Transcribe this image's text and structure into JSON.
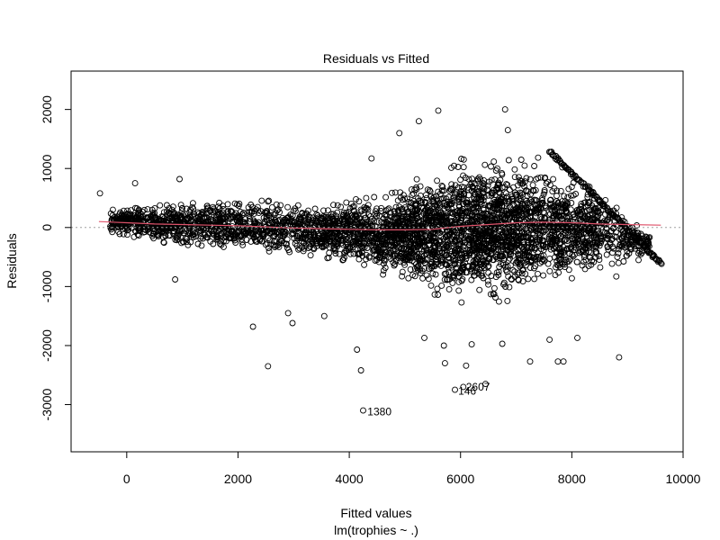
{
  "chart_data": {
    "type": "scatter",
    "title": "Residuals vs Fitted",
    "xlabel": "Fitted values",
    "ylabel": "Residuals",
    "subtitle": "lm(trophies ~ .)",
    "xlim": [
      -1000,
      10000
    ],
    "ylim": [
      -3800,
      2650
    ],
    "x_ticks": [
      0,
      2000,
      4000,
      6000,
      8000,
      10000
    ],
    "x_tick_labels": [
      "0",
      "2000",
      "4000",
      "6000",
      "8000",
      "10000"
    ],
    "y_ticks": [
      -3000,
      -2000,
      -1000,
      0,
      1000,
      2000
    ],
    "y_tick_labels": [
      "-3000",
      "-2000",
      "-1000",
      "0",
      "1000",
      "2000"
    ],
    "reference_line": {
      "y": 0,
      "style": "dotted",
      "color": "#a0a0a0"
    },
    "point_style": {
      "shape": "open-circle",
      "color": "#000000"
    },
    "smooth_color": "#df536b",
    "smooth": {
      "x": [
        -500,
        0,
        500,
        1000,
        1500,
        2000,
        2500,
        3000,
        3500,
        4000,
        4500,
        5000,
        5500,
        6000,
        6500,
        7000,
        7500,
        8000,
        8500,
        9000,
        9600
      ],
      "y": [
        100,
        80,
        60,
        50,
        40,
        30,
        10,
        -10,
        -20,
        -30,
        -40,
        -40,
        -30,
        20,
        50,
        80,
        90,
        80,
        60,
        50,
        40
      ]
    },
    "annotations": [
      {
        "label": "1380",
        "x": 4230,
        "y": -3120
      },
      {
        "label": "146",
        "x": 5860,
        "y": -2770
      },
      {
        "label": "2607",
        "x": 6000,
        "y": -2700
      }
    ],
    "highlight_points": [
      {
        "x": -480,
        "y": 580
      },
      {
        "x": -250,
        "y": 300
      },
      {
        "x": 150,
        "y": 750
      },
      {
        "x": 950,
        "y": 820
      },
      {
        "x": 870,
        "y": -880
      },
      {
        "x": 2270,
        "y": -1680
      },
      {
        "x": 2540,
        "y": -2350
      },
      {
        "x": 2900,
        "y": -1450
      },
      {
        "x": 2980,
        "y": -1620
      },
      {
        "x": 3550,
        "y": -1500
      },
      {
        "x": 4140,
        "y": -2070
      },
      {
        "x": 4210,
        "y": -2420
      },
      {
        "x": 4250,
        "y": -3100
      },
      {
        "x": 4400,
        "y": 1170
      },
      {
        "x": 4900,
        "y": 1600
      },
      {
        "x": 5250,
        "y": 1800
      },
      {
        "x": 5600,
        "y": 1980
      },
      {
        "x": 5720,
        "y": -2300
      },
      {
        "x": 5900,
        "y": -2750
      },
      {
        "x": 6050,
        "y": -2700
      },
      {
        "x": 6100,
        "y": -2340
      },
      {
        "x": 6450,
        "y": -2650
      },
      {
        "x": 6800,
        "y": 2000
      },
      {
        "x": 6850,
        "y": 1650
      },
      {
        "x": 7250,
        "y": -2270
      },
      {
        "x": 7750,
        "y": -2270
      },
      {
        "x": 7850,
        "y": -2270
      },
      {
        "x": 8850,
        "y": -2200
      },
      {
        "x": 5350,
        "y": -1870
      },
      {
        "x": 5700,
        "y": -2000
      },
      {
        "x": 6200,
        "y": -1980
      },
      {
        "x": 6750,
        "y": -1970
      },
      {
        "x": 7600,
        "y": -1900
      },
      {
        "x": 8100,
        "y": -1870
      },
      {
        "x": 8800,
        "y": -830
      },
      {
        "x": 9200,
        "y": -550
      },
      {
        "x": 9600,
        "y": -600
      },
      {
        "x": 9550,
        "y": -580
      },
      {
        "x": 9450,
        "y": -500
      }
    ],
    "bands": [
      {
        "x": [
          -300,
          1500
        ],
        "y_lo": [
          -150,
          -450
        ],
        "y_hi": [
          350,
          550
        ],
        "n": 500
      },
      {
        "x": [
          1500,
          3500
        ],
        "y_lo": [
          -450,
          -650
        ],
        "y_hi": [
          550,
          500
        ],
        "n": 550
      },
      {
        "x": [
          3500,
          4800
        ],
        "y_lo": [
          -650,
          -950
        ],
        "y_hi": [
          500,
          750
        ],
        "n": 550
      },
      {
        "x": [
          4800,
          6000
        ],
        "y_lo": [
          -950,
          -1500
        ],
        "y_hi": [
          750,
          1350
        ],
        "n": 800
      },
      {
        "x": [
          6000,
          7200
        ],
        "y_lo": [
          -1500,
          -1250
        ],
        "y_hi": [
          1350,
          1300
        ],
        "n": 900
      },
      {
        "x": [
          7200,
          8500
        ],
        "y_lo": [
          -1250,
          -900
        ],
        "y_hi": [
          1300,
          800
        ],
        "n": 650
      },
      {
        "x": [
          8500,
          9400
        ],
        "y_lo": [
          -900,
          -500
        ],
        "y_hi": [
          800,
          0
        ],
        "n": 180
      }
    ],
    "edge_line": {
      "x": [
        7600,
        9600
      ],
      "y": [
        1300,
        -600
      ],
      "n": 130
    }
  }
}
